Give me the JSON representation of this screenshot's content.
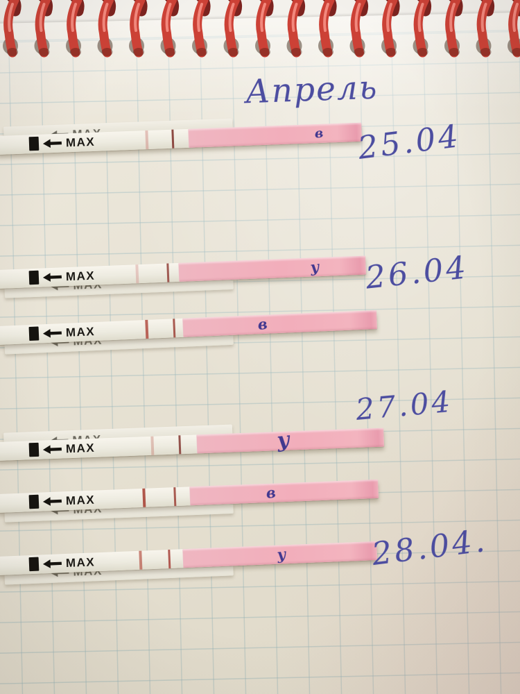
{
  "notebook": {
    "month_title": "Апрель",
    "paper_type": "graph-grid",
    "binding": "red-spiral-coils"
  },
  "strips": [
    {
      "label": "MAX",
      "ghost_label": "MAX",
      "letter": "в",
      "date": "25.04"
    },
    {
      "label": "MAX",
      "ghost_label": "MAX",
      "letter": "у",
      "date": "26.04"
    },
    {
      "label": "MAX",
      "ghost_label": "MAX",
      "letter": "в",
      "date": ""
    },
    {
      "label": "MAX",
      "ghost_label": "MAX",
      "letter": "у",
      "date": "27.04"
    },
    {
      "label": "MAX",
      "ghost_label": "MAX",
      "letter": "в",
      "date": ""
    },
    {
      "label": "MAX",
      "ghost_label": "MAX",
      "letter": "у",
      "date": "28.04."
    }
  ],
  "dates": [
    {
      "text": "25.04"
    },
    {
      "text": "26.04"
    },
    {
      "text": "27.04"
    },
    {
      "text": "28.04."
    }
  ],
  "colors": {
    "spiral_red": "#cc4136",
    "spiral_dark": "#7c231f",
    "paper": "#e9e4d7",
    "grid_line": "#7ca8b6",
    "strip_pad_pink": "#f2aebb",
    "control_line_red": "#a34b42",
    "ink_purple": "#4c4da0",
    "marker_black": "#15130f"
  }
}
